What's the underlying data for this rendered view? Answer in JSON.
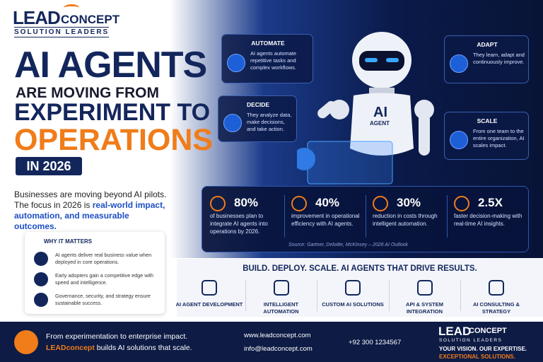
{
  "header": {
    "logo": {
      "lead": "LEAD",
      "concept": "CONCEPT",
      "tagline": "SOLUTION LEADERS"
    }
  },
  "headline": {
    "line1": "AI AGENTS",
    "line2": "ARE MOVING FROM",
    "line3": "EXPERIMENT TO",
    "line4": "OPERATIONS",
    "badge": "IN 2026"
  },
  "intro": {
    "text": "Businesses are moving beyond AI pilots. The focus in 2026 is ",
    "highlight": "real-world impact, automation, and measurable outcomes."
  },
  "why": {
    "title": "WHY IT MATTERS",
    "items": [
      "AI agents deliver real business value when deployed in core operations.",
      "Early adopters gain a competitive edge with speed and intelligence.",
      "Governance, security, and strategy ensure sustainable success."
    ]
  },
  "features": [
    {
      "title": "AUTOMATE",
      "text": "AI agents automate repetitive tasks and complex workflows."
    },
    {
      "title": "DECIDE",
      "text": "They analyze data, make decisions, and take action."
    },
    {
      "title": "ADAPT",
      "text": "They learn, adapt and continuously improve."
    },
    {
      "title": "SCALE",
      "text": "From one team to the entire organization, AI scales impact."
    }
  ],
  "robot": {
    "label1": "AI",
    "label2": "AGENT"
  },
  "stats": {
    "items": [
      {
        "value": "80%",
        "text": "of businesses plan to integrate AI agents into operations by 2026."
      },
      {
        "value": "40%",
        "text": "improvement in operational efficiency with AI agents."
      },
      {
        "value": "30%",
        "text": "reduction in costs through intelligent automation."
      },
      {
        "value": "2.5X",
        "text": "faster decision-making with real-time AI insights."
      }
    ],
    "source": "Source: Gartner, Deloitte, McKinsey – 2026 AI Outlook"
  },
  "services": {
    "title": "BUILD. DEPLOY. SCALE. AI AGENTS THAT DRIVE RESULTS.",
    "items": [
      "AI AGENT DEVELOPMENT",
      "INTELLIGENT AUTOMATION",
      "CUSTOM AI SOLUTIONS",
      "API & SYSTEM INTEGRATION",
      "AI CONSULTING & STRATEGY"
    ]
  },
  "footer": {
    "line1": "From experimentation to enterprise impact.",
    "brand": "LEADconcept",
    "line2": " builds AI solutions that scale.",
    "website": "www.leadconcept.com",
    "email": "info@leadconcept.com",
    "phone": "+92 300 1234567",
    "logo_lead": "LEAD",
    "logo_concept": "CONCEPT",
    "logo_tagline": "SOLUTION LEADERS",
    "slogan1": "YOUR VISION. OUR EXPERTISE.",
    "slogan2": "EXCEPTIONAL SOLUTIONS."
  }
}
